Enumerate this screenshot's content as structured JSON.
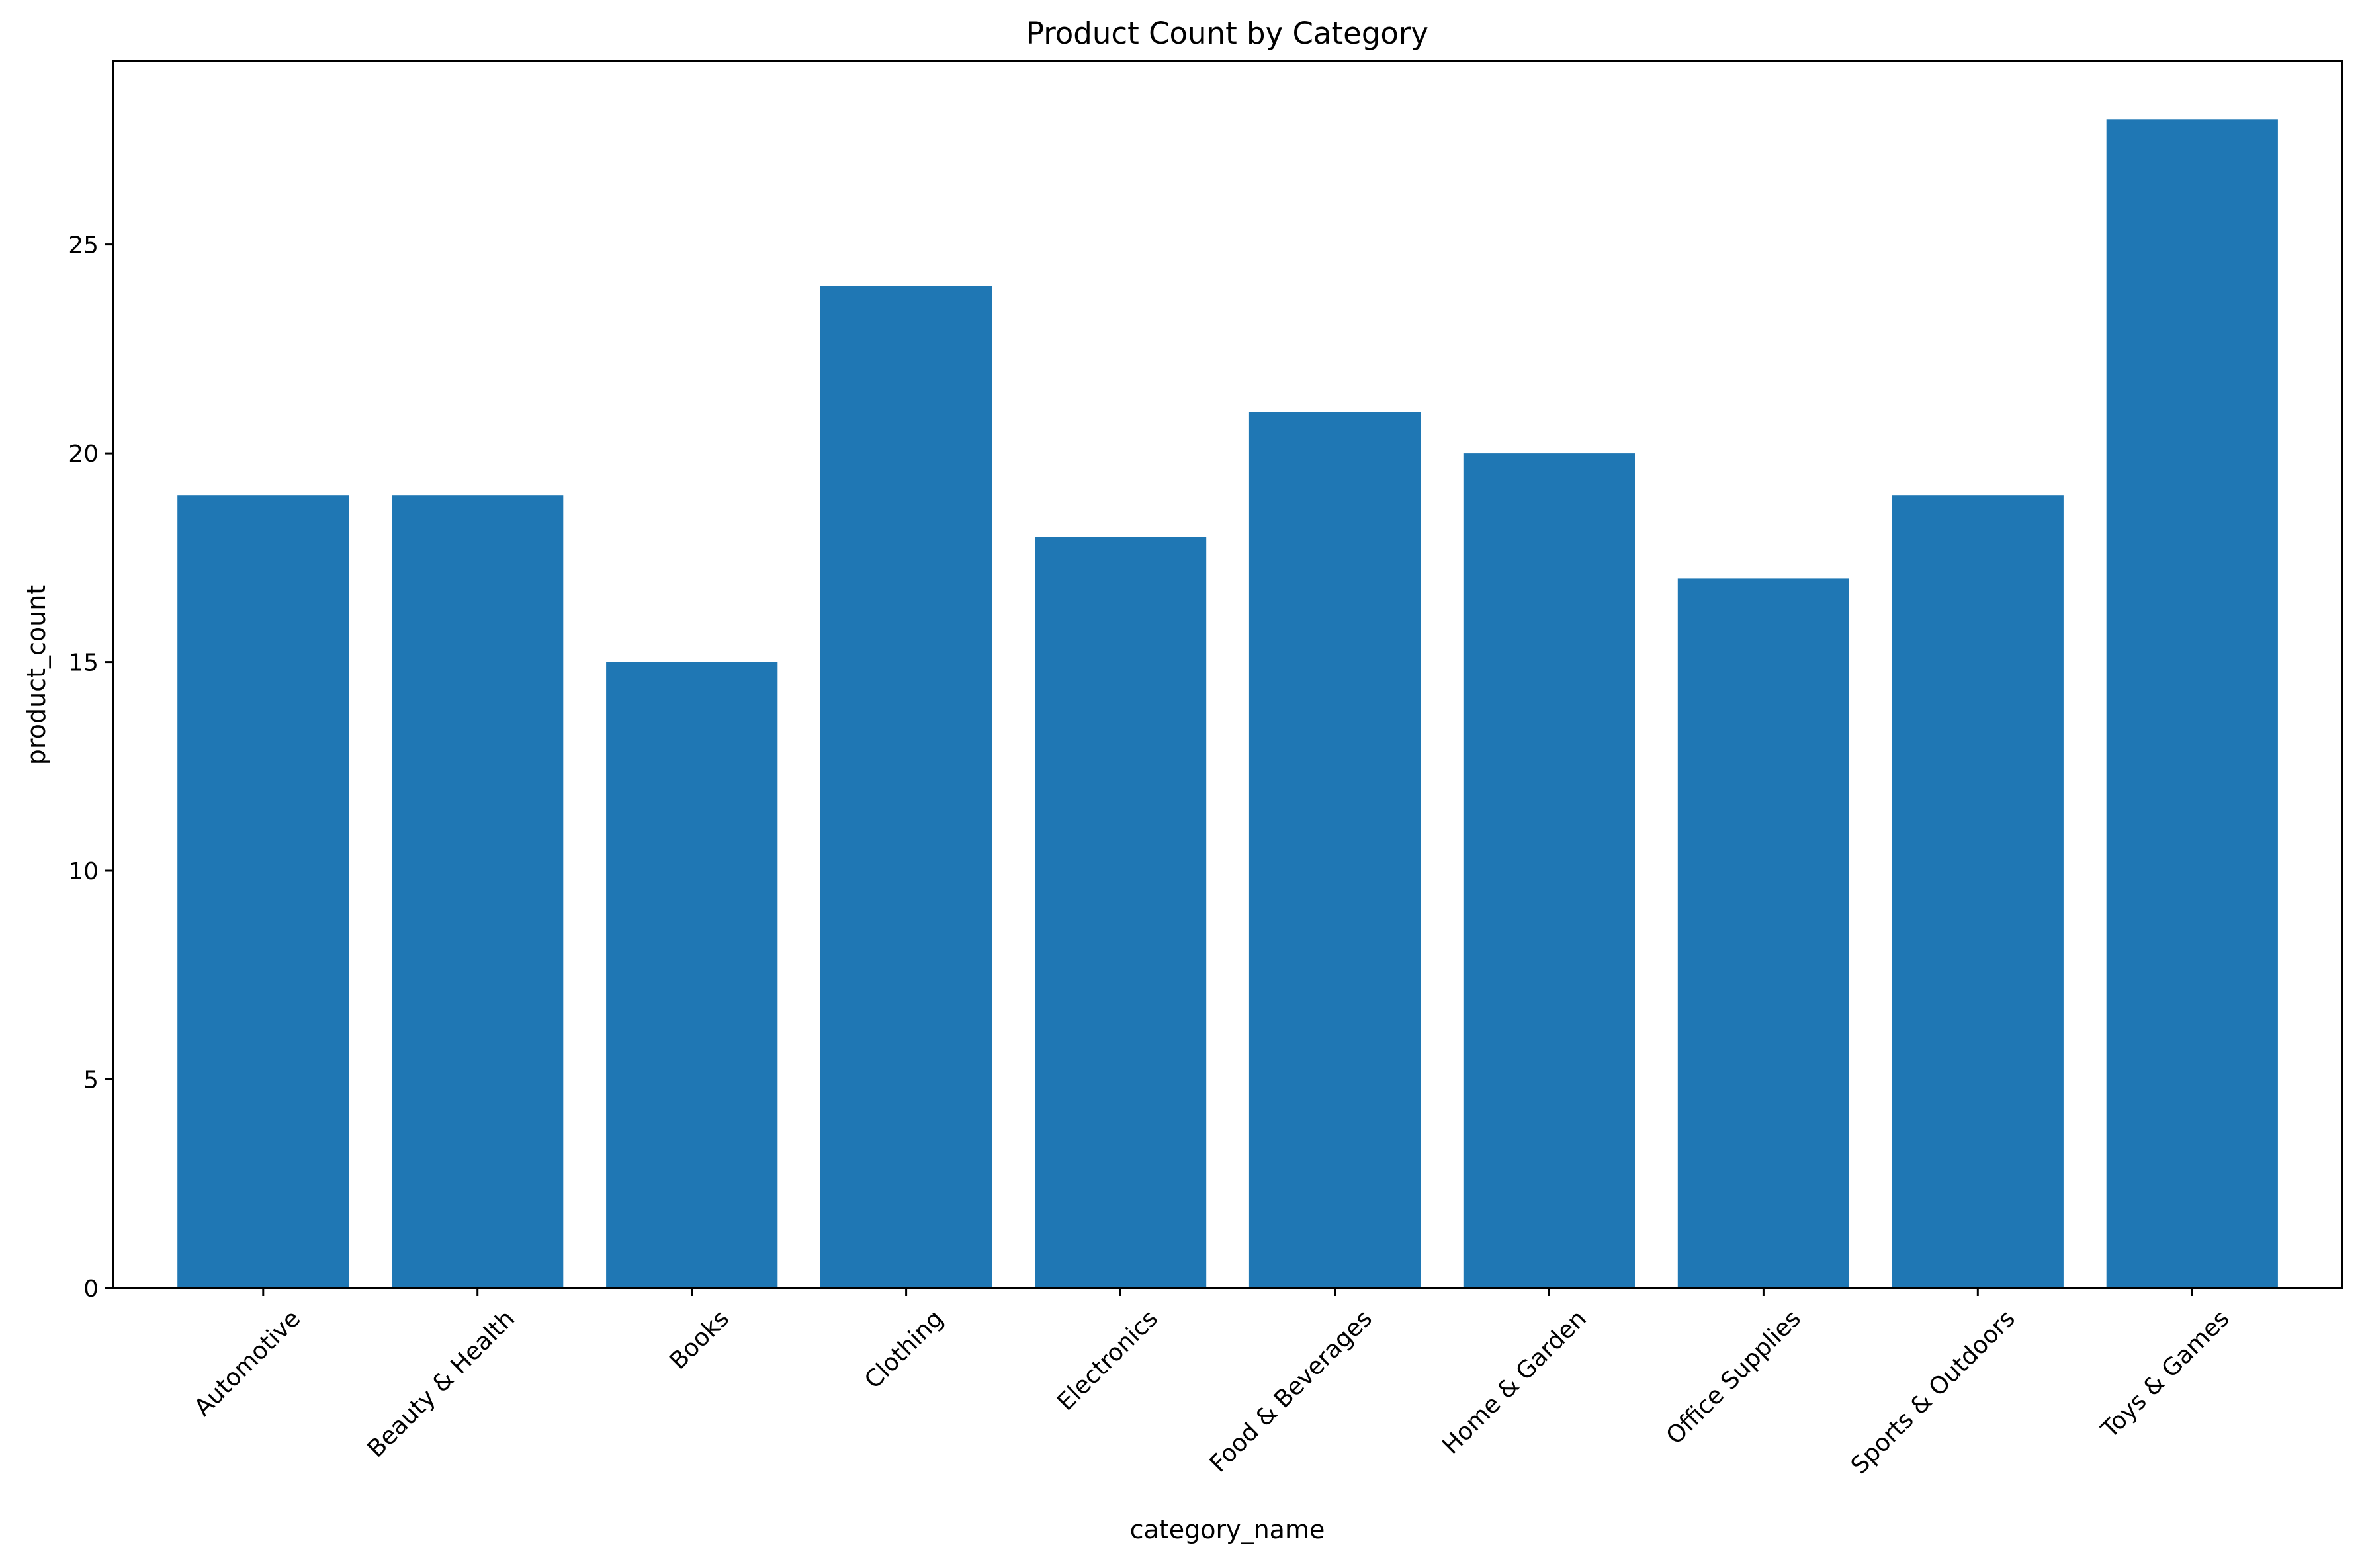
{
  "chart_data": {
    "type": "bar",
    "title": "Product Count by Category",
    "xlabel": "category_name",
    "ylabel": "product_count",
    "categories": [
      "Automotive",
      "Beauty & Health",
      "Books",
      "Clothing",
      "Electronics",
      "Food & Beverages",
      "Home & Garden",
      "Office Supplies",
      "Sports & Outdoors",
      "Toys & Games"
    ],
    "values": [
      19,
      19,
      15,
      24,
      18,
      21,
      20,
      17,
      19,
      28
    ],
    "ylim": [
      0,
      29.4
    ],
    "yticks": [
      0,
      5,
      10,
      15,
      20,
      25
    ],
    "ytick_labels": [
      "0",
      "5",
      "10",
      "15",
      "20",
      "25"
    ],
    "bar_color": "#1f77b4",
    "grid": false,
    "legend": "none",
    "xtick_rotation_degrees": 45
  }
}
